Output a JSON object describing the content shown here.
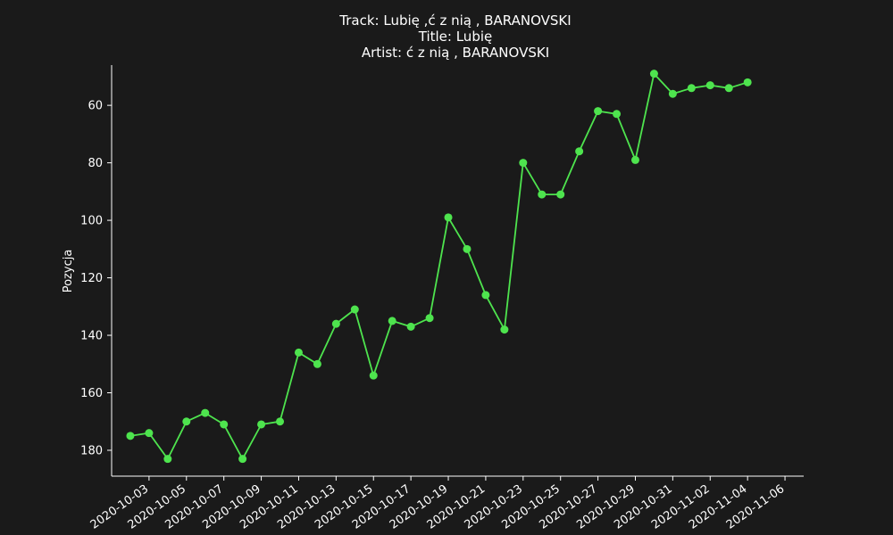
{
  "chart_data": {
    "type": "line",
    "title_lines": [
      "Track:  Lubię ,ć z nią , BARANOVSKI",
      "Title:  Lubię",
      "Artist: ć z nią , BARANOVSKI"
    ],
    "xlabel": "",
    "ylabel": "Pozycja",
    "y_inverted": true,
    "ylim": [
      189,
      46
    ],
    "xlim": [
      "2020-10-01",
      "2020-11-07"
    ],
    "y_ticks": [
      60,
      80,
      100,
      120,
      140,
      160,
      180
    ],
    "x_ticks": [
      "2020-10-03",
      "2020-10-05",
      "2020-10-07",
      "2020-10-09",
      "2020-10-11",
      "2020-10-13",
      "2020-10-15",
      "2020-10-17",
      "2020-10-19",
      "2020-10-21",
      "2020-10-23",
      "2020-10-25",
      "2020-10-27",
      "2020-10-29",
      "2020-10-31",
      "2020-11-02",
      "2020-11-04",
      "2020-11-06"
    ],
    "grid": false,
    "line_color": "#4ee44e",
    "axis_color": "#ffffff",
    "background": "#1a1a1a",
    "series": [
      {
        "x": [
          "2020-10-02",
          "2020-10-03",
          "2020-10-04",
          "2020-10-05",
          "2020-10-06",
          "2020-10-07",
          "2020-10-08",
          "2020-10-09",
          "2020-10-10",
          "2020-10-11",
          "2020-10-12",
          "2020-10-13",
          "2020-10-14",
          "2020-10-15",
          "2020-10-16",
          "2020-10-17",
          "2020-10-18",
          "2020-10-19",
          "2020-10-20",
          "2020-10-21",
          "2020-10-22",
          "2020-10-23",
          "2020-10-24",
          "2020-10-25",
          "2020-10-26",
          "2020-10-27",
          "2020-10-28",
          "2020-10-29",
          "2020-10-30",
          "2020-10-31",
          "2020-11-01",
          "2020-11-02",
          "2020-11-03",
          "2020-11-04"
        ],
        "y": [
          175,
          174,
          183,
          170,
          167,
          171,
          183,
          171,
          170,
          146,
          150,
          136,
          131,
          154,
          135,
          137,
          134,
          99,
          110,
          126,
          138,
          80,
          91,
          91,
          76,
          62,
          63,
          79,
          49,
          56,
          54,
          53,
          54,
          52
        ]
      }
    ]
  }
}
